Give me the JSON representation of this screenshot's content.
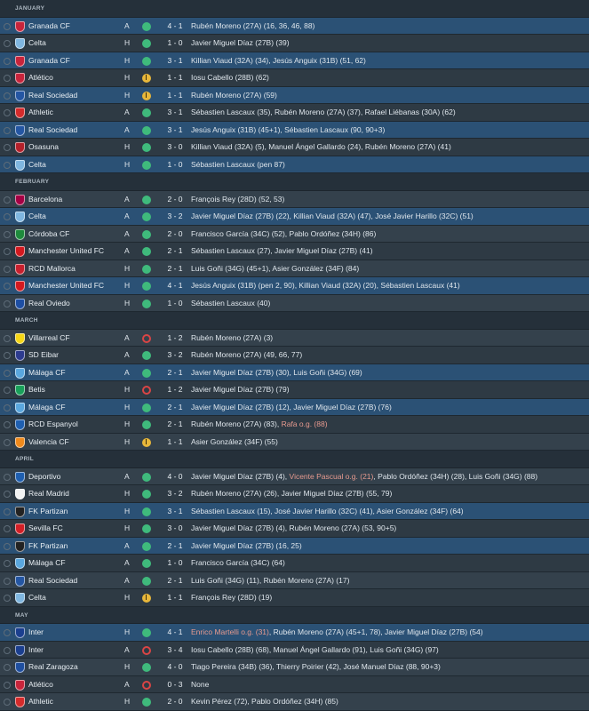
{
  "months": [
    {
      "name": "JANUARY",
      "matches": [
        {
          "team": "Granada CF",
          "venue": "A",
          "result": "W",
          "score": "4 - 1",
          "scorers": [
            {
              "t": "Rubén Moreno (27A) (16, 36, 46, 88)"
            }
          ],
          "crest": "#c8243b",
          "hl": true
        },
        {
          "team": "Celta",
          "venue": "H",
          "result": "W",
          "score": "1 - 0",
          "scorers": [
            {
              "t": "Javier Miguel Díaz (27B) (39)"
            }
          ],
          "crest": "#7fb6e0"
        },
        {
          "team": "Granada CF",
          "venue": "H",
          "result": "W",
          "score": "3 - 1",
          "scorers": [
            {
              "t": "Killian Viaud (32A) (34), Jesús Anguix (31B) (51, 62)"
            }
          ],
          "crest": "#c8243b",
          "hl": true
        },
        {
          "team": "Atlético",
          "venue": "H",
          "result": "D",
          "score": "1 - 1",
          "scorers": [
            {
              "t": "Iosu Cabello (28B) (62)"
            }
          ],
          "crest": "#c8243b"
        },
        {
          "team": "Real Sociedad",
          "venue": "H",
          "result": "D",
          "score": "1 - 1",
          "scorers": [
            {
              "t": "Rubén Moreno (27A) (59)"
            }
          ],
          "crest": "#2456a3",
          "hl": true
        },
        {
          "team": "Athletic",
          "venue": "A",
          "result": "W",
          "score": "3 - 1",
          "scorers": [
            {
              "t": "Sébastien Lascaux (35), Rubén Moreno (27A) (37), Rafael Liébanas (30A) (62)"
            }
          ],
          "crest": "#d52b2b"
        },
        {
          "team": "Real Sociedad",
          "venue": "A",
          "result": "W",
          "score": "3 - 1",
          "scorers": [
            {
              "t": "Jesús Anguix (31B) (45+1), Sébastien Lascaux (90, 90+3)"
            }
          ],
          "crest": "#2456a3",
          "hl": true
        },
        {
          "team": "Osasuna",
          "venue": "H",
          "result": "W",
          "score": "3 - 0",
          "scorers": [
            {
              "t": "Killian Viaud (32A) (5), Manuel Ángel Gallardo (24), Rubén Moreno (27A) (41)"
            }
          ],
          "crest": "#b4202a"
        },
        {
          "team": "Celta",
          "venue": "H",
          "result": "W",
          "score": "1 - 0",
          "scorers": [
            {
              "t": "Sébastien Lascaux (pen 87)"
            }
          ],
          "crest": "#7fb6e0",
          "hl": true
        }
      ]
    },
    {
      "name": "FEBRUARY",
      "matches": [
        {
          "team": "Barcelona",
          "venue": "A",
          "result": "W",
          "score": "2 - 0",
          "scorers": [
            {
              "t": "François Rey (28D) (52, 53)"
            }
          ],
          "crest": "#a50044"
        },
        {
          "team": "Celta",
          "venue": "A",
          "result": "W",
          "score": "3 - 2",
          "scorers": [
            {
              "t": "Javier Miguel Díaz (27B) (22), Killian Viaud (32A) (47), José Javier Harillo (32C) (51)"
            }
          ],
          "crest": "#7fb6e0",
          "hl": true
        },
        {
          "team": "Córdoba CF",
          "venue": "A",
          "result": "W",
          "score": "2 - 0",
          "scorers": [
            {
              "t": "Francisco García (34C) (52), Pablo Ordóñez (34H) (86)"
            }
          ],
          "crest": "#1e8a3c"
        },
        {
          "team": "Manchester United FC",
          "venue": "A",
          "result": "W",
          "score": "2 - 1",
          "scorers": [
            {
              "t": "Sébastien Lascaux (27), Javier Miguel Díaz (27B) (41)"
            }
          ],
          "crest": "#d3191f"
        },
        {
          "team": "RCD Mallorca",
          "venue": "H",
          "result": "W",
          "score": "2 - 1",
          "scorers": [
            {
              "t": "Luis Goñi (34G) (45+1), Asier González (34F) (84)"
            }
          ],
          "crest": "#c8202e"
        },
        {
          "team": "Manchester United FC",
          "venue": "H",
          "result": "W",
          "score": "4 - 1",
          "scorers": [
            {
              "t": "Jesús Anguix (31B) (pen 2, 90), Killian Viaud (32A) (20), Sébastien Lascaux (41)"
            }
          ],
          "crest": "#d3191f",
          "hl": true
        },
        {
          "team": "Real Oviedo",
          "venue": "H",
          "result": "W",
          "score": "1 - 0",
          "scorers": [
            {
              "t": "Sébastien Lascaux (40)"
            }
          ],
          "crest": "#1d4ea3"
        }
      ]
    },
    {
      "name": "MARCH",
      "matches": [
        {
          "team": "Villarreal CF",
          "venue": "A",
          "result": "L",
          "score": "1 - 2",
          "scorers": [
            {
              "t": "Rubén Moreno (27A) (3)"
            }
          ],
          "crest": "#f5d616"
        },
        {
          "team": "SD Eibar",
          "venue": "A",
          "result": "W",
          "score": "3 - 2",
          "scorers": [
            {
              "t": "Rubén Moreno (27A) (49, 66, 77)"
            }
          ],
          "crest": "#2d3b8f"
        },
        {
          "team": "Málaga CF",
          "venue": "A",
          "result": "W",
          "score": "2 - 1",
          "scorers": [
            {
              "t": "Javier Miguel Díaz (27B) (30), Luis Goñi (34G) (69)"
            }
          ],
          "crest": "#5aa7de",
          "hl": true
        },
        {
          "team": "Betis",
          "venue": "H",
          "result": "L",
          "score": "1 - 2",
          "scorers": [
            {
              "t": "Javier Miguel Díaz (27B) (79)"
            }
          ],
          "crest": "#19a05a"
        },
        {
          "team": "Málaga CF",
          "venue": "H",
          "result": "W",
          "score": "2 - 1",
          "scorers": [
            {
              "t": "Javier Miguel Díaz (27B) (12), Javier Miguel Díaz (27B) (76)"
            }
          ],
          "crest": "#5aa7de",
          "hl": true
        },
        {
          "team": "RCD Espanyol",
          "venue": "H",
          "result": "W",
          "score": "2 - 1",
          "scorers": [
            {
              "t": "Rubén Moreno (27A) (83), "
            },
            {
              "t": "Rafa o.g. (88)",
              "og": true
            }
          ],
          "crest": "#1f5fb0"
        },
        {
          "team": "Valencia CF",
          "venue": "H",
          "result": "D",
          "score": "1 - 1",
          "scorers": [
            {
              "t": "Asier González (34F) (55)"
            }
          ],
          "crest": "#f08a1c"
        }
      ]
    },
    {
      "name": "APRIL",
      "matches": [
        {
          "team": "Deportivo",
          "venue": "A",
          "result": "W",
          "score": "4 - 0",
          "scorers": [
            {
              "t": "Javier Miguel Díaz (27B) (4), "
            },
            {
              "t": "Vicente Pascual o.g. (21)",
              "og": true
            },
            {
              "t": ", Pablo Ordóñez (34H) (28), Luis Goñi (34G) (88)"
            }
          ],
          "crest": "#1f5fb0"
        },
        {
          "team": "Real Madrid",
          "venue": "H",
          "result": "W",
          "score": "3 - 2",
          "scorers": [
            {
              "t": "Rubén Moreno (27A) (26), Javier Miguel Díaz (27B) (55, 79)"
            }
          ],
          "crest": "#f2f2f2"
        },
        {
          "team": "FK Partizan",
          "venue": "H",
          "result": "W",
          "score": "3 - 1",
          "scorers": [
            {
              "t": "Sébastien Lascaux (15), José Javier Harillo (32C) (41), Asier González (34F) (64)"
            }
          ],
          "crest": "#222222",
          "hl": true
        },
        {
          "team": "Sevilla FC",
          "venue": "H",
          "result": "W",
          "score": "3 - 0",
          "scorers": [
            {
              "t": "Javier Miguel Díaz (27B) (4), Rubén Moreno (27A) (53, 90+5)"
            }
          ],
          "crest": "#d31f26"
        },
        {
          "team": "FK Partizan",
          "venue": "A",
          "result": "W",
          "score": "2 - 1",
          "scorers": [
            {
              "t": "Javier Miguel Díaz (27B) (16, 25)"
            }
          ],
          "crest": "#222222",
          "hl": true
        },
        {
          "team": "Málaga CF",
          "venue": "A",
          "result": "W",
          "score": "1 - 0",
          "scorers": [
            {
              "t": "Francisco García (34C) (64)"
            }
          ],
          "crest": "#5aa7de"
        },
        {
          "team": "Real Sociedad",
          "venue": "A",
          "result": "W",
          "score": "2 - 1",
          "scorers": [
            {
              "t": "Luis Goñi (34G) (11), Rubén Moreno (27A) (17)"
            }
          ],
          "crest": "#2456a3"
        },
        {
          "team": "Celta",
          "venue": "H",
          "result": "D",
          "score": "1 - 1",
          "scorers": [
            {
              "t": "François Rey (28D) (19)"
            }
          ],
          "crest": "#7fb6e0"
        }
      ]
    },
    {
      "name": "MAY",
      "matches": [
        {
          "team": "Inter",
          "venue": "H",
          "result": "W",
          "score": "4 - 1",
          "scorers": [
            {
              "t": "Enrico Martelli o.g. (31)",
              "og": true
            },
            {
              "t": ", Rubén Moreno (27A) (45+1, 78), Javier Miguel Díaz (27B) (54)"
            }
          ],
          "crest": "#1b3f8f",
          "hl": true
        },
        {
          "team": "Inter",
          "venue": "A",
          "result": "L",
          "score": "3 - 4",
          "scorers": [
            {
              "t": "Iosu Cabello (28B) (68), Manuel Ángel Gallardo (91), Luis Goñi (34G) (97)"
            }
          ],
          "crest": "#1b3f8f"
        },
        {
          "team": "Real Zaragoza",
          "venue": "H",
          "result": "W",
          "score": "4 - 0",
          "scorers": [
            {
              "t": "Tiago Pereira (34B) (36), Thierry Poirier (42), José Manuel Díaz (88, 90+3)"
            }
          ],
          "crest": "#1f4fa0"
        },
        {
          "team": "Atlético",
          "venue": "A",
          "result": "L",
          "score": "0 - 3",
          "scorers": [
            {
              "t": "None"
            }
          ],
          "crest": "#c8243b"
        },
        {
          "team": "Athletic",
          "venue": "H",
          "result": "W",
          "score": "2 - 0",
          "scorers": [
            {
              "t": "Kevin Pérez (72), Pablo Ordóñez (34H) (85)"
            }
          ],
          "crest": "#d52b2b"
        }
      ]
    }
  ]
}
